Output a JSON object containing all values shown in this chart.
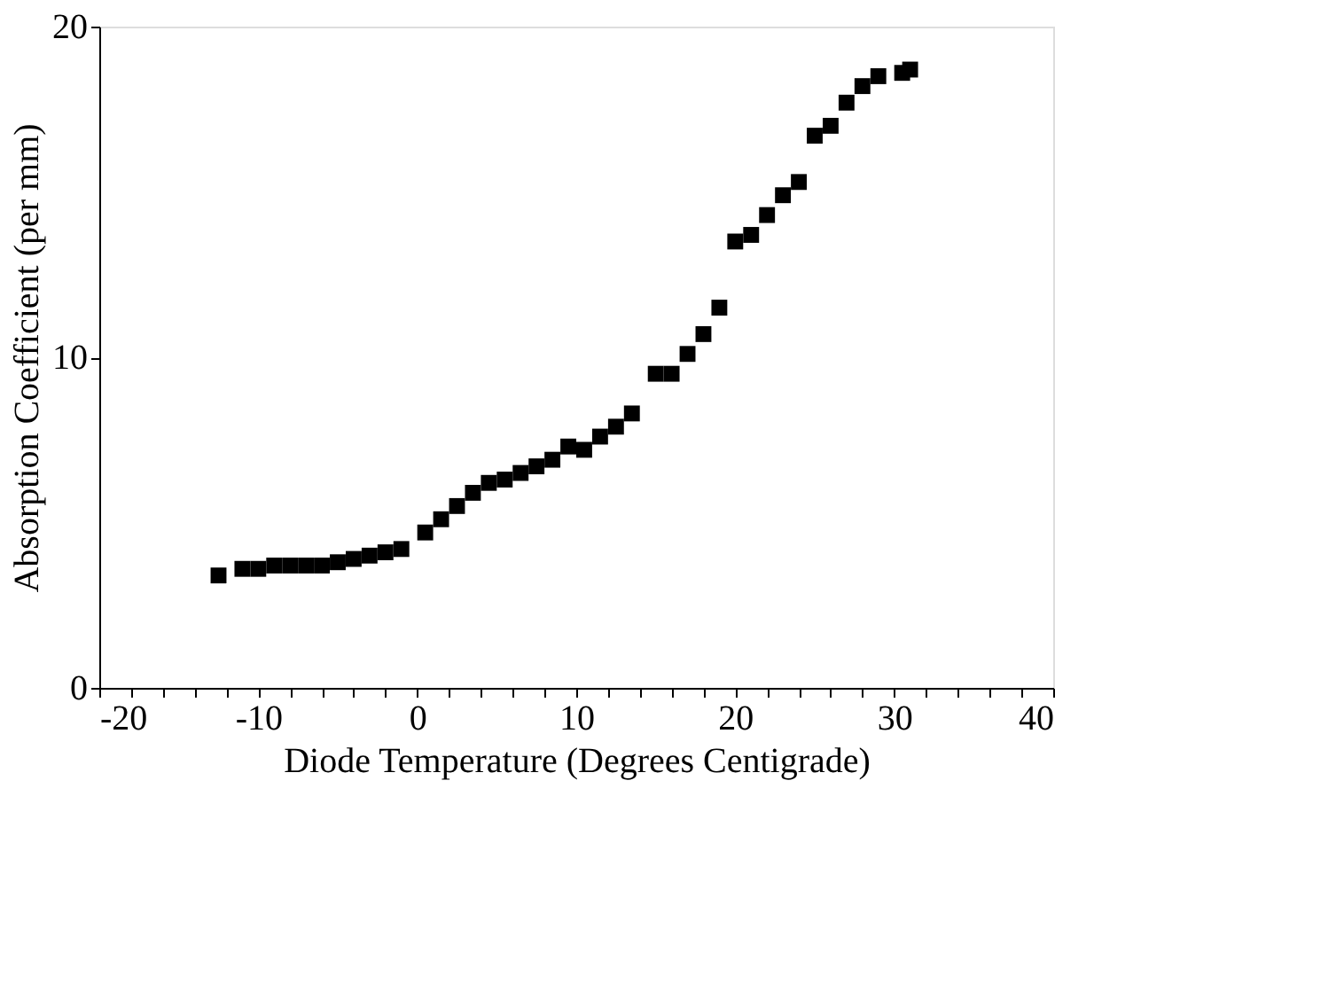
{
  "chart_data": {
    "type": "scatter",
    "xlabel": "Diode Temperature (Degrees Centigrade)",
    "ylabel": "Absorption Coefficient (per mm)",
    "marker": "square",
    "grid": false,
    "xlim": [
      -20,
      40
    ],
    "ylim": [
      0,
      20
    ],
    "xticks": [
      -20,
      {
        "value": -18,
        "label": null
      },
      {
        "value": -16,
        "label": null
      },
      {
        "value": -14,
        "label": null
      },
      {
        "value": -12,
        "label": null
      },
      -10,
      {
        "value": -8,
        "label": null
      },
      {
        "value": -6,
        "label": null
      },
      {
        "value": -4,
        "label": null
      },
      {
        "value": -2,
        "label": null
      },
      0,
      {
        "value": 2,
        "label": null
      },
      {
        "value": 4,
        "label": null
      },
      {
        "value": 6,
        "label": null
      },
      {
        "value": 8,
        "label": null
      },
      10,
      {
        "value": 12,
        "label": null
      },
      {
        "value": 14,
        "label": null
      },
      {
        "value": 16,
        "label": null
      },
      {
        "value": 18,
        "label": null
      },
      20,
      {
        "value": 22,
        "label": null
      },
      {
        "value": 24,
        "label": null
      },
      {
        "value": 26,
        "label": null
      },
      {
        "value": 28,
        "label": null
      },
      30,
      {
        "value": 32,
        "label": null
      },
      {
        "value": 34,
        "label": null
      },
      {
        "value": 36,
        "label": null
      },
      {
        "value": 38,
        "label": null
      },
      40
    ],
    "yticks": [
      0,
      10,
      20
    ],
    "series": [
      {
        "color": "#000000",
        "x": [
          -12.5,
          -11,
          -10,
          -9,
          -8,
          -7,
          -6,
          -5,
          -4,
          -3,
          -2,
          -1,
          0.5,
          1.5,
          2.5,
          3.5,
          4.5,
          5.5,
          6.5,
          7.5,
          8.5,
          9.5,
          10.5,
          11.5,
          12.5,
          13.5,
          15,
          16,
          17,
          18,
          19,
          20,
          21,
          22,
          23,
          24,
          25,
          26,
          27,
          28,
          29,
          30.5,
          31
        ],
        "values": [
          3.4,
          3.6,
          3.6,
          3.7,
          3.7,
          3.7,
          3.7,
          3.8,
          3.9,
          4.0,
          4.1,
          4.2,
          4.7,
          5.1,
          5.5,
          5.9,
          6.2,
          6.3,
          6.5,
          6.7,
          6.9,
          7.3,
          7.2,
          7.6,
          7.9,
          8.3,
          9.5,
          9.5,
          10.1,
          10.7,
          11.5,
          13.5,
          13.7,
          14.3,
          14.9,
          15.3,
          16.7,
          17.0,
          17.7,
          18.2,
          18.5,
          18.6,
          18.7
        ]
      }
    ]
  }
}
